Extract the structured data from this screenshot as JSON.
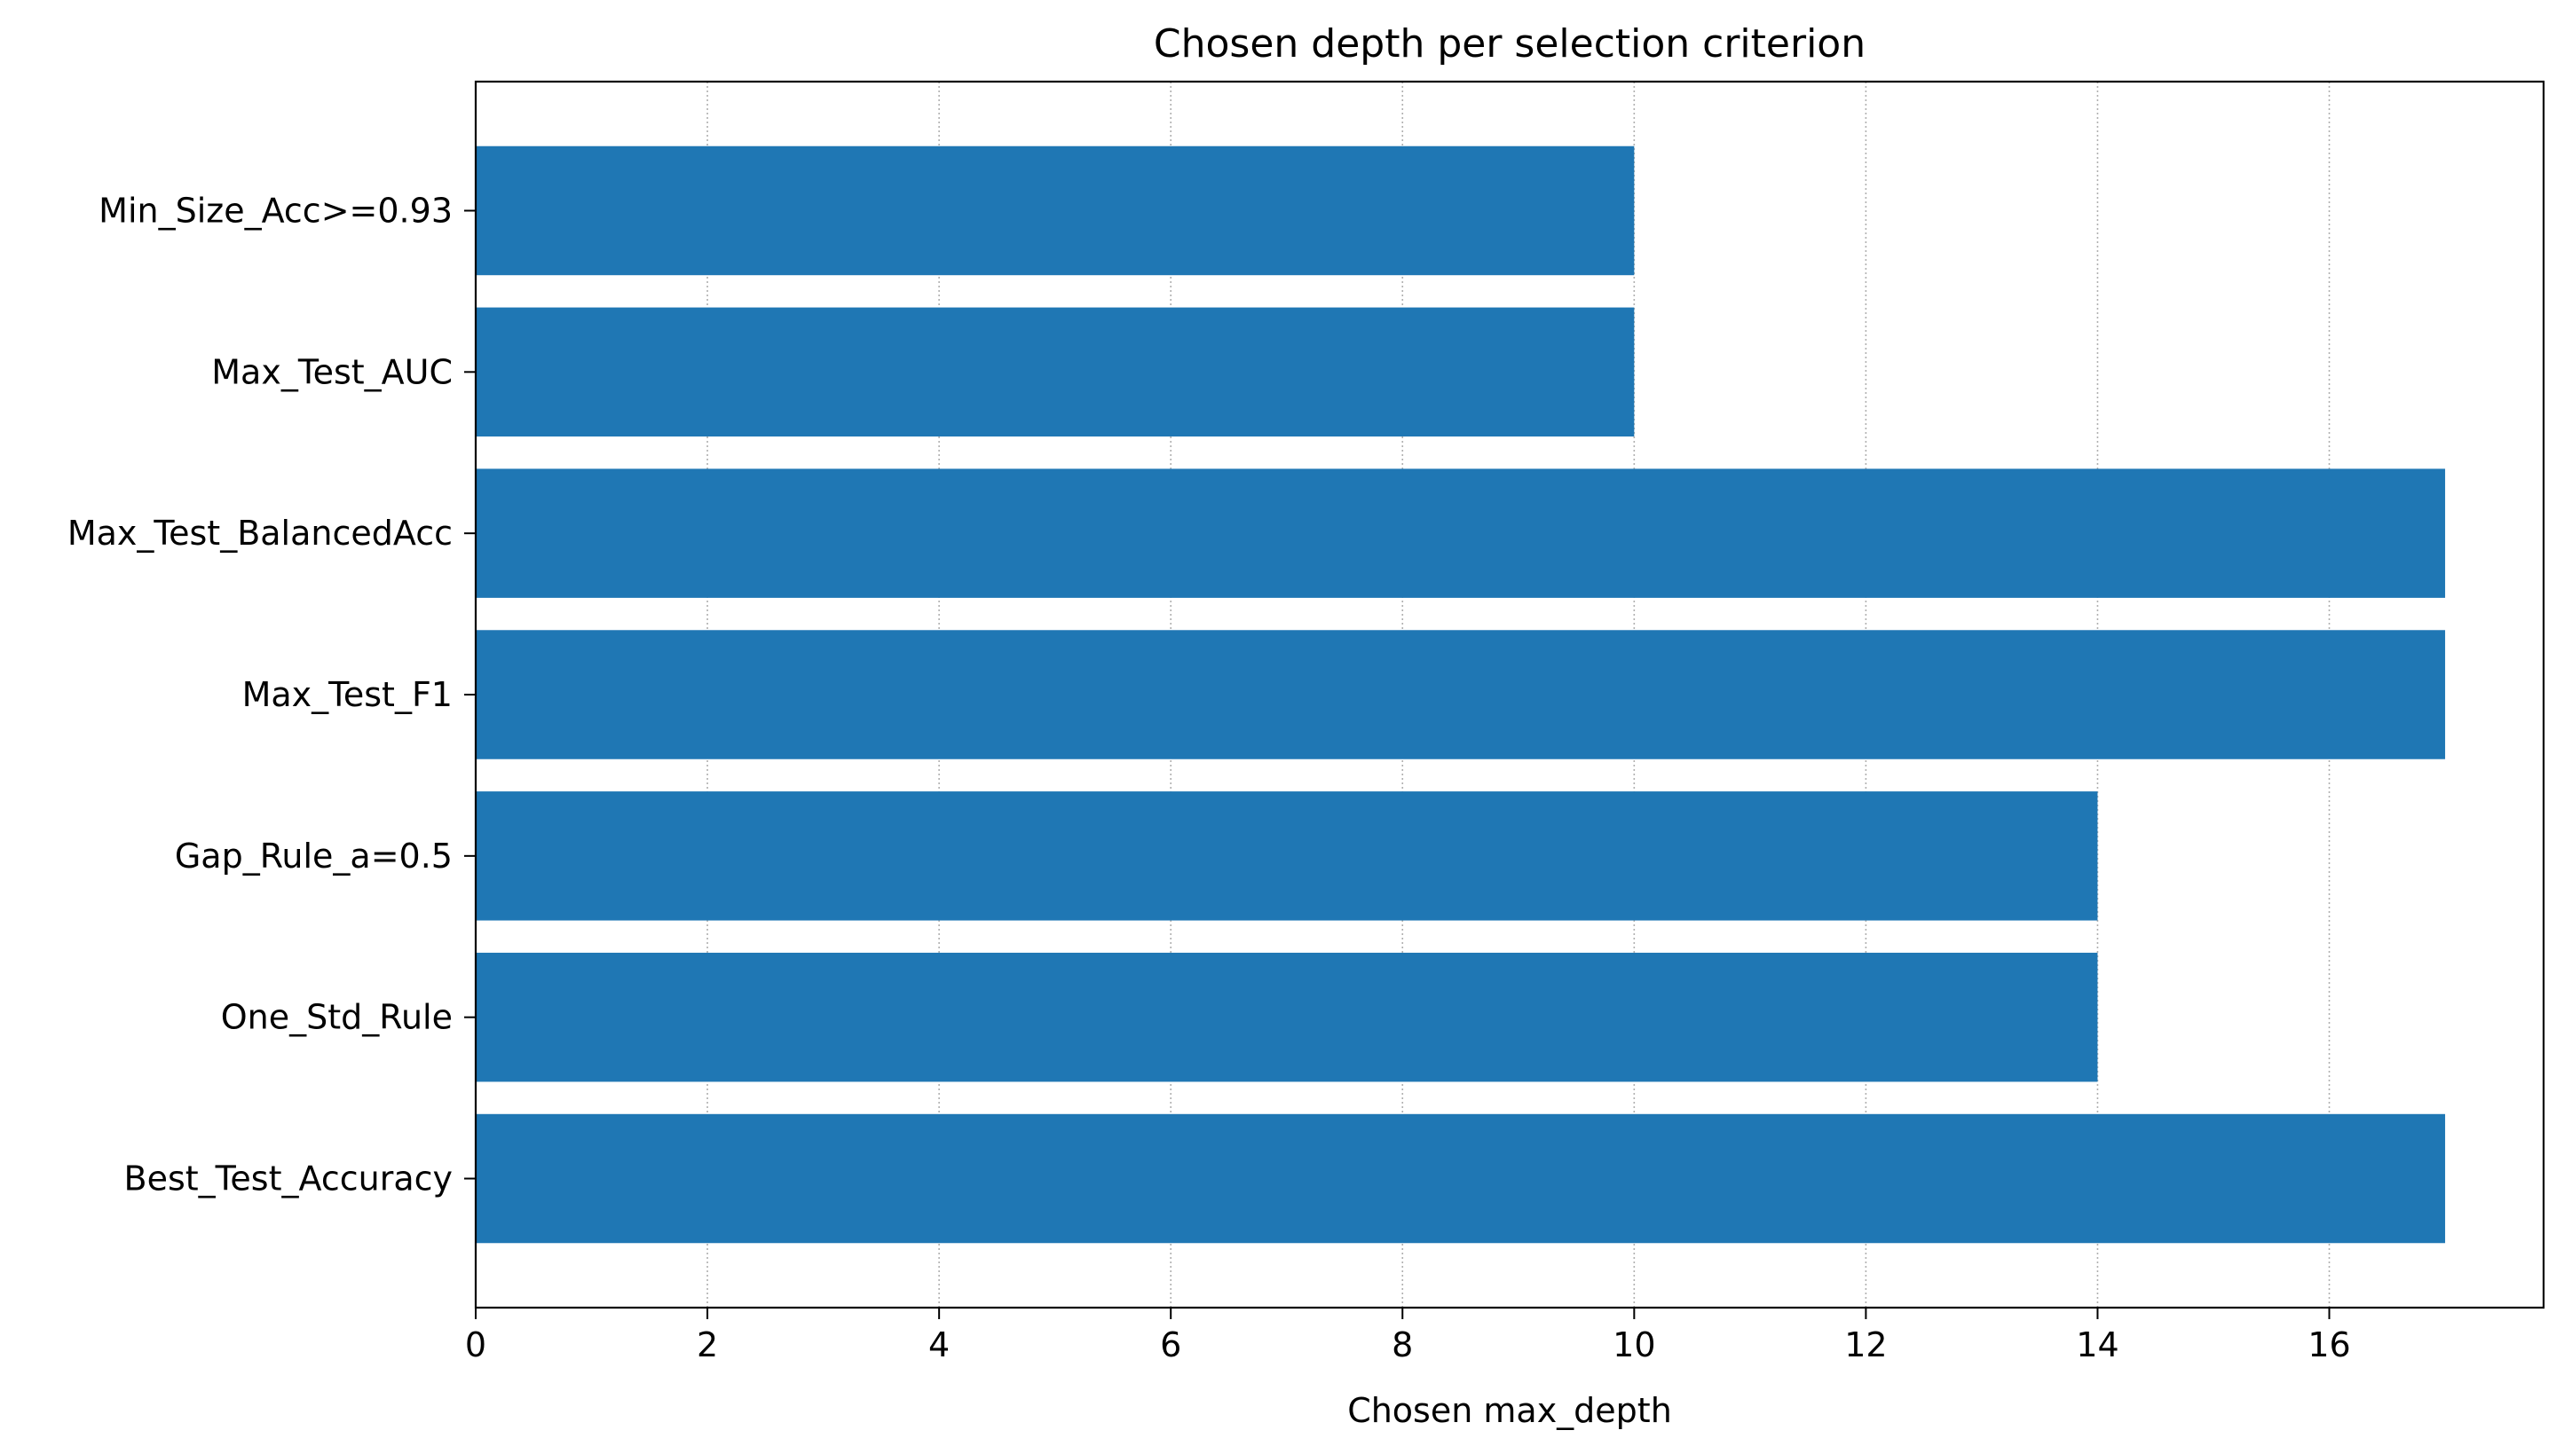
{
  "chart_data": {
    "type": "bar",
    "orientation": "horizontal",
    "title": "Chosen depth per selection criterion",
    "xlabel": "Chosen max_depth",
    "ylabel": "",
    "categories": [
      "Best_Test_Accuracy",
      "One_Std_Rule",
      "Gap_Rule_a=0.5",
      "Max_Test_F1",
      "Max_Test_BalancedAcc",
      "Max_Test_AUC",
      "Min_Size_Acc>=0.93"
    ],
    "values": [
      17,
      14,
      14,
      17,
      17,
      10,
      10
    ],
    "xlim": [
      0,
      17.85
    ],
    "xticks": [
      0,
      2,
      4,
      6,
      8,
      10,
      12,
      14,
      16
    ],
    "grid": "x-dotted",
    "bar_color": "#1f77b4"
  }
}
